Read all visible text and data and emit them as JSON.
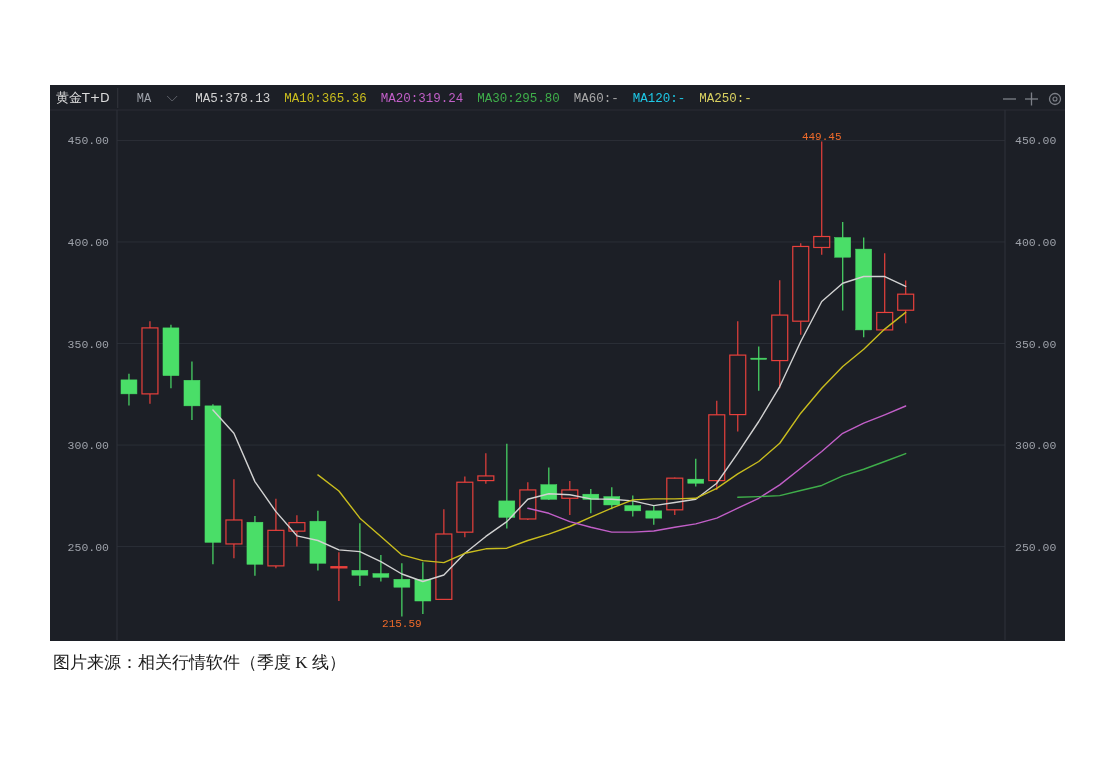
{
  "chart_data": {
    "type": "candlestick",
    "title": "黄金T+D",
    "legend_title": "MA",
    "categories": [
      null,
      null,
      null,
      null,
      null,
      null,
      null,
      null,
      null,
      null,
      null,
      null,
      null,
      null,
      null,
      null,
      null,
      null,
      null,
      null,
      null,
      null,
      null,
      null,
      null,
      null,
      null,
      null,
      null,
      null,
      null,
      null,
      null,
      null,
      null,
      null,
      null,
      null
    ],
    "ohlc": [
      [
        332.1,
        335.1,
        319.5,
        325.2
      ],
      [
        325.2,
        361.0,
        320.3,
        357.7
      ],
      [
        357.7,
        359.2,
        328.0,
        334.2
      ],
      [
        331.9,
        341.1,
        312.4,
        319.3
      ],
      [
        319.3,
        320.1,
        241.3,
        252.1
      ],
      [
        251.3,
        283.2,
        244.3,
        263.1
      ],
      [
        262.0,
        265.1,
        235.6,
        241.3
      ],
      [
        240.5,
        273.5,
        239.3,
        258.0
      ],
      [
        257.6,
        265.4,
        250.0,
        261.8
      ],
      [
        262.5,
        267.7,
        238.2,
        241.8
      ],
      [
        239.9,
        247.2,
        223.2,
        240.1
      ],
      [
        238.3,
        261.5,
        230.6,
        235.9
      ],
      [
        236.7,
        245.9,
        232.8,
        234.9
      ],
      [
        233.9,
        241.8,
        215.59,
        230.0
      ],
      [
        233.9,
        242.3,
        216.8,
        223.2
      ],
      [
        224.0,
        268.4,
        223.8,
        256.2
      ],
      [
        257.1,
        284.5,
        254.6,
        281.7
      ],
      [
        282.5,
        296.0,
        280.9,
        284.8
      ],
      [
        272.5,
        300.6,
        258.9,
        264.4
      ],
      [
        263.6,
        281.7,
        263.1,
        277.9
      ],
      [
        280.5,
        288.9,
        273.0,
        273.3
      ],
      [
        273.8,
        282.3,
        265.6,
        277.9
      ],
      [
        275.8,
        278.4,
        266.4,
        273.3
      ],
      [
        274.6,
        279.2,
        268.4,
        270.5
      ],
      [
        270.2,
        275.1,
        264.8,
        267.6
      ],
      [
        267.6,
        270.5,
        260.7,
        264.0
      ],
      [
        268.1,
        284.0,
        265.6,
        283.7
      ],
      [
        283.2,
        293.2,
        279.6,
        281.2
      ],
      [
        282.5,
        321.8,
        277.9,
        314.9
      ],
      [
        315.0,
        361.0,
        306.7,
        344.3
      ],
      [
        342.8,
        348.5,
        326.8,
        342.6
      ],
      [
        341.6,
        381.2,
        328.0,
        364.0
      ],
      [
        361.0,
        399.4,
        354.3,
        397.8
      ],
      [
        397.3,
        449.45,
        393.7,
        402.7
      ],
      [
        402.2,
        409.8,
        366.3,
        392.5
      ],
      [
        396.5,
        402.2,
        353.1,
        356.7
      ],
      [
        356.7,
        394.5,
        356.5,
        365.3
      ],
      [
        366.4,
        381.0,
        360.0,
        374.3
      ]
    ],
    "colors": [
      "#4ade68",
      "#e8403c",
      "#4ade68",
      "#4ade68",
      "#4ade68",
      "#e8403c",
      "#4ade68",
      "#e8403c",
      "#e8403c",
      "#4ade68",
      "#e8403c",
      "#4ade68",
      "#4ade68",
      "#4ade68",
      "#4ade68",
      "#e8403c",
      "#e8403c",
      "#e8403c",
      "#4ade68",
      "#e8403c",
      "#4ade68",
      "#e8403c",
      "#4ade68",
      "#4ade68",
      "#4ade68",
      "#4ade68",
      "#e8403c",
      "#4ade68",
      "#e8403c",
      "#e8403c",
      "#4ade68",
      "#e8403c",
      "#e8403c",
      "#e8403c",
      "#4ade68",
      "#4ade68",
      "#e8403c",
      "#e8403c"
    ],
    "series": [
      {
        "name": "MA5:378.13",
        "type": "line",
        "color": "#d2d2d2",
        "values": [
          null,
          null,
          null,
          null,
          317.3,
          305.8,
          282.0,
          267.2,
          255.3,
          253.0,
          248.4,
          247.5,
          242.6,
          236.5,
          232.8,
          236.0,
          246.7,
          255.0,
          262.3,
          273.3,
          276.0,
          275.5,
          273.5,
          273.3,
          272.5,
          270.2,
          271.7,
          273.3,
          281.2,
          296.0,
          311.6,
          328.8,
          351.0,
          370.7,
          379.7,
          383.0,
          383.0,
          378.13
        ]
      },
      {
        "name": "MA10:365.36",
        "type": "line",
        "color": "#c9bd1e",
        "values": [
          null,
          null,
          null,
          null,
          null,
          null,
          null,
          null,
          null,
          285.3,
          277.4,
          264.0,
          255.0,
          245.9,
          243.1,
          242.1,
          246.7,
          248.9,
          249.2,
          253.0,
          256.1,
          259.9,
          264.5,
          268.9,
          273.0,
          273.5,
          273.5,
          273.8,
          278.7,
          285.8,
          291.9,
          300.9,
          315.7,
          328.0,
          338.7,
          347.2,
          357.1,
          365.36
        ]
      },
      {
        "name": "MA20:319.24",
        "type": "line",
        "color": "#c25fc8",
        "values": [
          null,
          null,
          null,
          null,
          null,
          null,
          null,
          null,
          null,
          null,
          null,
          null,
          null,
          null,
          null,
          null,
          null,
          null,
          null,
          268.9,
          266.4,
          262.3,
          259.5,
          257.1,
          257.1,
          257.7,
          259.5,
          261.2,
          264.0,
          268.9,
          273.8,
          280.4,
          288.6,
          296.8,
          305.8,
          310.8,
          314.9,
          319.24
        ]
      },
      {
        "name": "MA30:295.80",
        "type": "line",
        "color": "#3fae4a",
        "values": [
          null,
          null,
          null,
          null,
          null,
          null,
          null,
          null,
          null,
          null,
          null,
          null,
          null,
          null,
          null,
          null,
          null,
          null,
          null,
          null,
          null,
          null,
          null,
          null,
          null,
          null,
          null,
          null,
          null,
          274.3,
          274.6,
          275.1,
          277.6,
          280.1,
          284.8,
          288.1,
          291.9,
          295.8
        ]
      },
      {
        "name": "MA60:-",
        "type": "line",
        "color": "#a8a8a8",
        "values": [
          null,
          null,
          null,
          null,
          null,
          null,
          null,
          null,
          null,
          null,
          null,
          null,
          null,
          null,
          null,
          null,
          null,
          null,
          null,
          null,
          null,
          null,
          null,
          null,
          null,
          null,
          null,
          null,
          null,
          null,
          null,
          null,
          null,
          null,
          null,
          null,
          null,
          null
        ]
      },
      {
        "name": "MA120:-",
        "type": "line",
        "color": "#1ec8e6",
        "values": [
          null,
          null,
          null,
          null,
          null,
          null,
          null,
          null,
          null,
          null,
          null,
          null,
          null,
          null,
          null,
          null,
          null,
          null,
          null,
          null,
          null,
          null,
          null,
          null,
          null,
          null,
          null,
          null,
          null,
          null,
          null,
          null,
          null,
          null,
          null,
          null,
          null,
          null
        ]
      },
      {
        "name": "MA250:-",
        "type": "line",
        "color": "#d8d060",
        "values": [
          null,
          null,
          null,
          null,
          null,
          null,
          null,
          null,
          null,
          null,
          null,
          null,
          null,
          null,
          null,
          null,
          null,
          null,
          null,
          null,
          null,
          null,
          null,
          null,
          null,
          null,
          null,
          null,
          null,
          null,
          null,
          null,
          null,
          null,
          null,
          null,
          null,
          null
        ]
      }
    ],
    "ylim": [
      204,
      465
    ],
    "yticks": [
      {
        "value": 250,
        "label": "250.00"
      },
      {
        "value": 300,
        "label": "300.00"
      },
      {
        "value": 350,
        "label": "350.00"
      },
      {
        "value": 400,
        "label": "400.00"
      },
      {
        "value": 450,
        "label": "450.00"
      }
    ],
    "y2lim": [
      204,
      465
    ],
    "y2ticks": [
      {
        "value": 250,
        "label": "250.00"
      },
      {
        "value": 300,
        "label": "300.00"
      },
      {
        "value": 350,
        "label": "350.00"
      },
      {
        "value": 400,
        "label": "400.00"
      },
      {
        "value": 450,
        "label": "450.00"
      }
    ],
    "grid": "y",
    "legend": "top left",
    "annotations": [
      {
        "text": "449.45",
        "y": 449.45
      },
      {
        "text": "215.59",
        "y": 215.59
      },
      "图片来源：相关行情软件（季度 K 线）"
    ]
  }
}
